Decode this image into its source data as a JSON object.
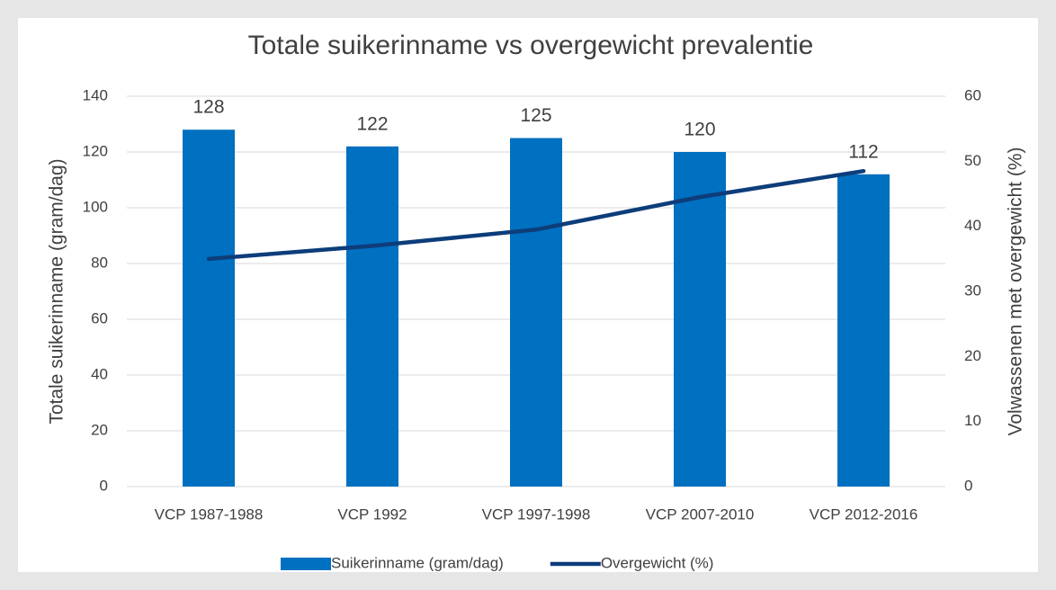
{
  "chart_data": {
    "type": "bar",
    "title": "Totale suikerinname vs overgewicht prevalentie",
    "y_label": "Totale suikerinname (gram/dag)",
    "y2_label": "Volwassenen met overgewicht (%)",
    "categories": [
      "VCP 1987-1988",
      "VCP 1992",
      "VCP 1997-1998",
      "VCP 2007-2010",
      "VCP 2012-2016"
    ],
    "series": [
      {
        "name": "Suikerinname (gram/dag)",
        "type": "bar",
        "color": "#0070c0",
        "values": [
          128,
          122,
          125,
          120,
          112
        ]
      },
      {
        "name": "Overgewicht (%)",
        "type": "line",
        "axis": "y2",
        "color": "#0d3d7a",
        "values": [
          35,
          37,
          39.5,
          44.5,
          48.5
        ]
      }
    ],
    "ylim": [
      0,
      140
    ],
    "yticks": [
      0,
      20,
      40,
      60,
      80,
      100,
      120,
      140
    ],
    "y2lim": [
      0,
      60
    ],
    "y2ticks": [
      0,
      10,
      20,
      30,
      40,
      50,
      60
    ],
    "grid": true,
    "legend": "bottom"
  }
}
